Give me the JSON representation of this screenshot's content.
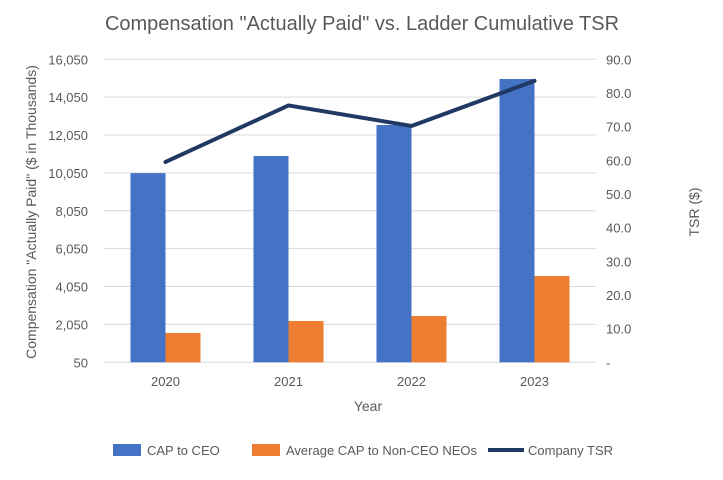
{
  "chart_data": {
    "type": "bar",
    "title": "Compensation \"Actually Paid\" vs. Ladder Cumulative TSR",
    "xlabel": "Year",
    "ylabel": "Compensation \"Actually Paid\" ($ in Thousands)",
    "y2label": "TSR ($)",
    "categories": [
      "2020",
      "2021",
      "2022",
      "2023"
    ],
    "ylim": [
      50,
      16050
    ],
    "yticks": [
      "50",
      "2,050",
      "4,050",
      "6,050",
      "8,050",
      "10,050",
      "12,050",
      "14,050",
      "16,050"
    ],
    "y2lim": [
      0,
      90
    ],
    "y2ticks": [
      "-",
      "10.0",
      "20.0",
      "30.0",
      "40.0",
      "50.0",
      "60.0",
      "70.0",
      "80.0",
      "90.0"
    ],
    "grid": true,
    "legend_position": "bottom",
    "series": [
      {
        "name": "CAP to CEO",
        "type": "bar",
        "axis": "left",
        "color": "#4472C4",
        "values": [
          10040,
          10945,
          12580,
          15010
        ]
      },
      {
        "name": "Average CAP to Non-CEO NEOs",
        "type": "bar",
        "axis": "left",
        "color": "#ED7D31",
        "values": [
          1600,
          2230,
          2495,
          4605
        ]
      },
      {
        "name": "Company TSR",
        "type": "line",
        "axis": "right",
        "color": "#203864",
        "values": [
          59.5,
          76.3,
          70.2,
          83.6
        ]
      }
    ]
  }
}
